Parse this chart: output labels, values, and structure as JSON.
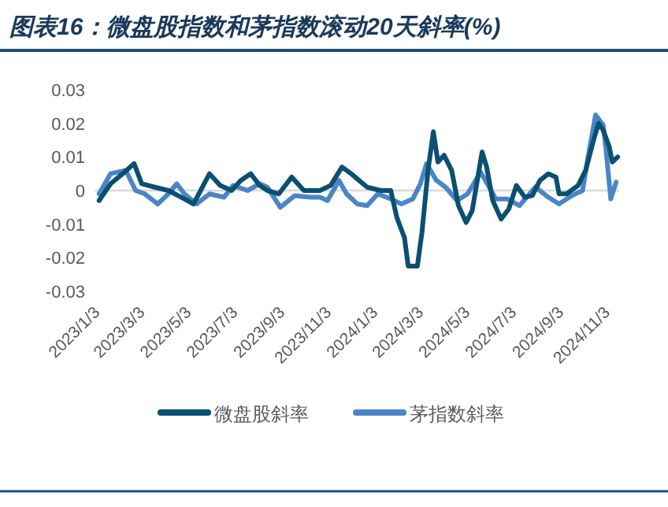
{
  "chart_data": {
    "type": "line",
    "title": "图表16：微盘股指数和茅指数滚动20天斜率(%)",
    "xlim": [
      "2023-01-03",
      "2024-11-22"
    ],
    "xticks": [
      {
        "value": "2023-01-03",
        "label": "2023/1/3"
      },
      {
        "value": "2023-03-03",
        "label": "2023/3/3"
      },
      {
        "value": "2023-05-03",
        "label": "2023/5/3"
      },
      {
        "value": "2023-07-03",
        "label": "2023/7/3"
      },
      {
        "value": "2023-09-03",
        "label": "2023/9/3"
      },
      {
        "value": "2023-11-03",
        "label": "2023/11/3"
      },
      {
        "value": "2024-01-03",
        "label": "2024/1/3"
      },
      {
        "value": "2024-03-03",
        "label": "2024/3/3"
      },
      {
        "value": "2024-05-03",
        "label": "2024/5/3"
      },
      {
        "value": "2024-07-03",
        "label": "2024/7/3"
      },
      {
        "value": "2024-09-03",
        "label": "2024/9/3"
      },
      {
        "value": "2024-11-03",
        "label": "2024/11/3"
      }
    ],
    "ylim": [
      -0.03,
      0.03
    ],
    "yticks": [
      -0.03,
      -0.02,
      -0.01,
      0,
      0.01,
      0.02,
      0.03
    ],
    "legend": "bottom",
    "series": [
      {
        "name": "微盘股斜率",
        "color": "#0b4f71",
        "x": [
          "2023-01-09",
          "2023-01-24",
          "2023-02-09",
          "2023-02-24",
          "2023-03-06",
          "2023-03-23",
          "2023-04-10",
          "2023-04-27",
          "2023-05-13",
          "2023-06-03",
          "2023-06-17",
          "2023-07-02",
          "2023-07-14",
          "2023-07-27",
          "2023-08-08",
          "2023-08-18",
          "2023-09-02",
          "2023-09-19",
          "2023-10-05",
          "2023-10-26",
          "2023-11-09",
          "2023-11-24",
          "2023-12-06",
          "2023-12-27",
          "2024-01-14",
          "2024-01-27",
          "2024-02-04",
          "2024-02-14",
          "2024-02-19",
          "2024-03-02",
          "2024-03-08",
          "2024-03-16",
          "2024-03-23",
          "2024-03-29",
          "2024-04-06",
          "2024-04-16",
          "2024-04-25",
          "2024-05-05",
          "2024-05-13",
          "2024-05-26",
          "2024-06-01",
          "2024-06-09",
          "2024-06-20",
          "2024-06-30",
          "2024-07-10",
          "2024-07-21",
          "2024-07-31",
          "2024-08-10",
          "2024-08-21",
          "2024-08-31",
          "2024-09-04",
          "2024-09-14",
          "2024-09-29",
          "2024-10-09",
          "2024-10-20",
          "2024-10-26",
          "2024-11-01",
          "2024-11-09",
          "2024-11-13",
          "2024-11-20"
        ],
        "values": [
          -0.003,
          0.002,
          0.005,
          0.008,
          0.002,
          0.001,
          0,
          -0.002,
          -0.004,
          0.005,
          0.0015,
          0,
          0.003,
          0.005,
          0.0015,
          0,
          -0.001,
          0.004,
          0,
          0,
          0.0015,
          0.007,
          0.005,
          0.001,
          0,
          0,
          -0.008,
          -0.014,
          -0.0225,
          -0.0225,
          -0.0125,
          0.006,
          0.0175,
          0.0085,
          0.0105,
          0.006,
          -0.0045,
          -0.0095,
          -0.006,
          0.0115,
          0.007,
          -0.003,
          -0.0085,
          -0.0055,
          0.0015,
          -0.002,
          -0.0015,
          0.003,
          0.005,
          0.004,
          -0.001,
          -0.001,
          0.0015,
          0.006,
          0.0155,
          0.02,
          0.018,
          0.013,
          0.0085,
          0.01
        ]
      },
      {
        "name": "茅指数斜率",
        "color": "#4a86c5",
        "x": [
          "2023-01-09",
          "2023-01-24",
          "2023-02-13",
          "2023-02-26",
          "2023-03-10",
          "2023-03-27",
          "2023-04-10",
          "2023-04-21",
          "2023-05-01",
          "2023-05-17",
          "2023-06-03",
          "2023-06-22",
          "2023-07-04",
          "2023-07-23",
          "2023-08-08",
          "2023-08-18",
          "2023-09-04",
          "2023-09-23",
          "2023-10-13",
          "2023-10-26",
          "2023-11-05",
          "2023-11-20",
          "2023-11-30",
          "2023-12-14",
          "2023-12-27",
          "2024-01-10",
          "2024-01-27",
          "2024-02-10",
          "2024-02-25",
          "2024-03-06",
          "2024-03-14",
          "2024-03-27",
          "2024-04-08",
          "2024-04-23",
          "2024-05-07",
          "2024-05-24",
          "2024-06-03",
          "2024-06-13",
          "2024-06-28",
          "2024-07-14",
          "2024-08-04",
          "2024-08-21",
          "2024-09-04",
          "2024-09-21",
          "2024-10-05",
          "2024-10-11",
          "2024-10-22",
          "2024-11-01",
          "2024-11-05",
          "2024-11-11",
          "2024-11-18"
        ],
        "values": [
          -0.001,
          0.005,
          0.006,
          0,
          -0.001,
          -0.004,
          -0.001,
          0.002,
          -0.001,
          -0.004,
          -0.001,
          -0.002,
          0.0015,
          0,
          0.002,
          0.001,
          -0.005,
          -0.0015,
          -0.002,
          -0.002,
          -0.003,
          0.003,
          -0.001,
          -0.004,
          -0.0045,
          -0.001,
          -0.0025,
          -0.004,
          -0.0025,
          0.002,
          0.008,
          0.003,
          0.001,
          -0.003,
          -0.001,
          0.0055,
          0.0015,
          -0.0025,
          -0.0025,
          -0.0045,
          0.001,
          -0.002,
          -0.004,
          -0.0015,
          0,
          0.0085,
          0.0225,
          0.0195,
          0.0115,
          -0.0025,
          0.0025
        ]
      }
    ]
  }
}
